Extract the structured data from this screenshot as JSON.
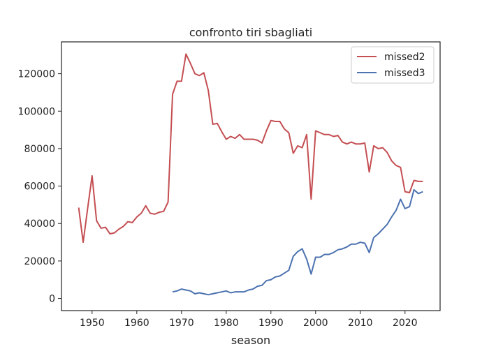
{
  "chart_data": {
    "type": "line",
    "title": "confronto tiri sbagliati",
    "xlabel": "season",
    "ylabel": "",
    "xlim": [
      1943.15,
      2027.85
    ],
    "ylim": [
      -6500,
      137000
    ],
    "xticks": [
      1950,
      1960,
      1970,
      1980,
      1990,
      2000,
      2010,
      2020
    ],
    "yticks": [
      0,
      20000,
      40000,
      60000,
      80000,
      100000,
      120000
    ],
    "grid": false,
    "legend_position": "top-right",
    "series": [
      {
        "name": "missed2",
        "color": "#c44e52",
        "x": [
          1947,
          1948,
          1949,
          1950,
          1951,
          1952,
          1953,
          1954,
          1955,
          1956,
          1957,
          1958,
          1959,
          1960,
          1961,
          1962,
          1963,
          1964,
          1965,
          1966,
          1967,
          1968,
          1969,
          1970,
          1971,
          1972,
          1973,
          1974,
          1975,
          1976,
          1977,
          1978,
          1979,
          1980,
          1981,
          1982,
          1983,
          1984,
          1985,
          1986,
          1987,
          1988,
          1989,
          1990,
          1991,
          1992,
          1993,
          1994,
          1995,
          1996,
          1997,
          1998,
          1999,
          2000,
          2001,
          2002,
          2003,
          2004,
          2005,
          2006,
          2007,
          2008,
          2009,
          2010,
          2011,
          2012,
          2013,
          2014,
          2015,
          2016,
          2017,
          2018,
          2019,
          2020,
          2021,
          2022,
          2023,
          2024
        ],
        "values": [
          48500,
          30000,
          48000,
          65500,
          41500,
          37500,
          38000,
          34500,
          35000,
          37000,
          38500,
          41000,
          40500,
          43500,
          45500,
          49500,
          45500,
          45000,
          46000,
          46500,
          51500,
          109000,
          116000,
          116000,
          130500,
          125500,
          120000,
          119000,
          120500,
          111000,
          93000,
          93500,
          89000,
          85000,
          86500,
          85500,
          87500,
          85000,
          85000,
          85000,
          84500,
          83000,
          89500,
          95000,
          94500,
          94500,
          90500,
          88500,
          77500,
          81500,
          80500,
          87500,
          53000,
          89500,
          88500,
          87500,
          87500,
          86500,
          87000,
          83500,
          82500,
          83500,
          82500,
          82500,
          83000,
          67500,
          81500,
          80000,
          80500,
          78000,
          73500,
          71000,
          70000,
          57000,
          56500,
          63000,
          62500,
          62500
        ]
      },
      {
        "name": "missed3",
        "color": "#4c72b0",
        "x": [
          1968,
          1969,
          1970,
          1971,
          1972,
          1973,
          1974,
          1975,
          1976,
          1977,
          1978,
          1979,
          1980,
          1981,
          1982,
          1983,
          1984,
          1985,
          1986,
          1987,
          1988,
          1989,
          1990,
          1991,
          1992,
          1993,
          1994,
          1995,
          1996,
          1997,
          1998,
          1999,
          2000,
          2001,
          2002,
          2003,
          2004,
          2005,
          2006,
          2007,
          2008,
          2009,
          2010,
          2011,
          2012,
          2013,
          2014,
          2015,
          2016,
          2017,
          2018,
          2019,
          2020,
          2021,
          2022,
          2023,
          2024
        ],
        "values": [
          3500,
          4000,
          5000,
          4500,
          4000,
          2500,
          3000,
          2500,
          2000,
          2500,
          3000,
          3500,
          4000,
          3000,
          3500,
          3500,
          3500,
          4500,
          5000,
          6500,
          7000,
          9500,
          10000,
          11500,
          12000,
          13500,
          15000,
          22500,
          25000,
          26500,
          21000,
          13000,
          22000,
          22000,
          23500,
          23500,
          24500,
          26000,
          26500,
          27500,
          29000,
          29000,
          30000,
          29500,
          24500,
          32500,
          34500,
          37000,
          39500,
          43500,
          47000,
          53000,
          48000,
          49000,
          58000,
          56000,
          57000
        ]
      }
    ]
  }
}
